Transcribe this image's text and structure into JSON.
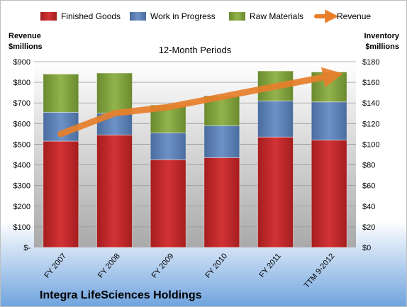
{
  "chart_data": {
    "type": "bar",
    "stacked": true,
    "subtitle": "12-Month Periods",
    "company": "Integra LifeSciences Holdings",
    "left_axis_title": [
      "Revenue",
      "$millions"
    ],
    "right_axis_title": [
      "Inventory",
      "$millions"
    ],
    "categories": [
      "FY 2007",
      "FY 2008",
      "FY 2009",
      "FY 2010",
      "FY 2011",
      "TTM 9-2012"
    ],
    "left_axis": {
      "min": 0,
      "max": 900,
      "step": 100,
      "tick_labels": [
        "$-",
        "$100",
        "$200",
        "$300",
        "$400",
        "$500",
        "$600",
        "$700",
        "$800",
        "$900"
      ]
    },
    "right_axis": {
      "min": 0,
      "max": 180,
      "step": 20,
      "tick_labels": [
        "$0",
        "$20",
        "$40",
        "$60",
        "$80",
        "$100",
        "$120",
        "$140",
        "$160",
        "$180"
      ]
    },
    "series": [
      {
        "name": "Finished Goods",
        "axis": "right",
        "color": "#c0292b",
        "values": [
          103,
          109,
          85,
          87,
          107,
          104
        ]
      },
      {
        "name": "Work in Progress",
        "axis": "right",
        "color": "#5b7fb4",
        "values": [
          28,
          21,
          26,
          31,
          35,
          37
        ]
      },
      {
        "name": "Raw Materials",
        "axis": "right",
        "color": "#7f9e3d",
        "values": [
          37,
          39,
          27,
          29,
          29,
          29
        ]
      },
      {
        "name": "Revenue",
        "axis": "left",
        "type": "line",
        "color": "#e87f2b",
        "values": [
          550,
          650,
          680,
          730,
          780,
          830
        ]
      }
    ],
    "legend_position": "top",
    "grid": true
  }
}
